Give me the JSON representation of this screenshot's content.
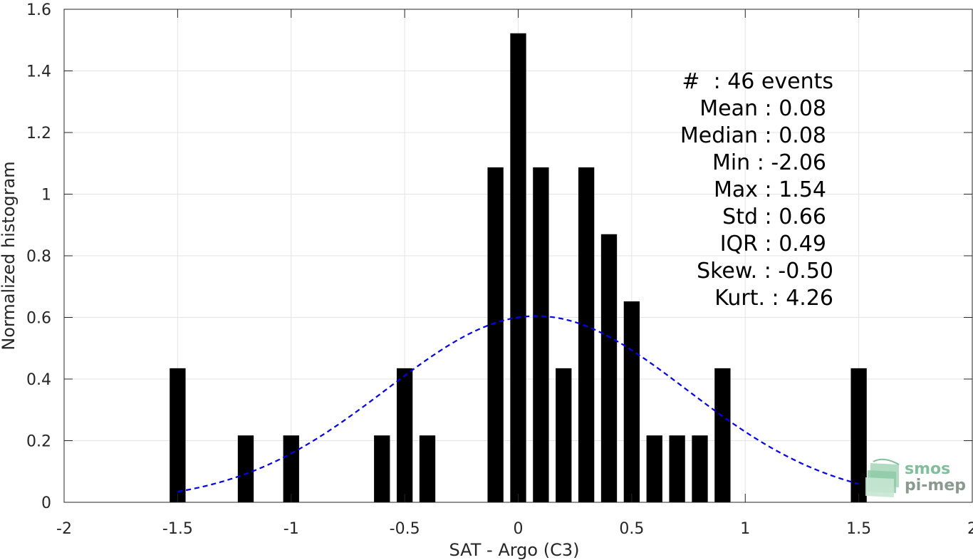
{
  "chart_data": {
    "type": "bar",
    "title": "",
    "xlabel": "SAT - Argo (C3)",
    "ylabel": "Normalized histogram",
    "xlim": [
      -2,
      2
    ],
    "ylim": [
      0,
      1.6
    ],
    "xticks": [
      -2,
      -1.5,
      -1,
      -0.5,
      0,
      0.5,
      1,
      1.5,
      2
    ],
    "xtick_labels": [
      "-2",
      "-1.5",
      "-1",
      "-0.5",
      "0",
      "0.5",
      "1",
      "1.5",
      "2"
    ],
    "yticks": [
      0,
      0.2,
      0.4,
      0.6,
      0.8,
      1,
      1.2,
      1.4,
      1.6
    ],
    "ytick_labels": [
      "0",
      "0.2",
      "0.4",
      "0.6",
      "0.8",
      "1",
      "1.2",
      "1.4",
      "1.6"
    ],
    "grid": true,
    "bar_color": "#000000",
    "bar_width": 0.07,
    "bars": [
      {
        "x": -1.5,
        "y": 0.435
      },
      {
        "x": -1.2,
        "y": 0.217
      },
      {
        "x": -1.0,
        "y": 0.217
      },
      {
        "x": -0.6,
        "y": 0.217
      },
      {
        "x": -0.5,
        "y": 0.435
      },
      {
        "x": -0.4,
        "y": 0.217
      },
      {
        "x": -0.1,
        "y": 1.087
      },
      {
        "x": 0.0,
        "y": 1.522
      },
      {
        "x": 0.1,
        "y": 1.087
      },
      {
        "x": 0.2,
        "y": 0.435
      },
      {
        "x": 0.3,
        "y": 1.087
      },
      {
        "x": 0.4,
        "y": 0.87
      },
      {
        "x": 0.5,
        "y": 0.652
      },
      {
        "x": 0.6,
        "y": 0.217
      },
      {
        "x": 0.7,
        "y": 0.217
      },
      {
        "x": 0.8,
        "y": 0.217
      },
      {
        "x": 0.9,
        "y": 0.435
      },
      {
        "x": 1.5,
        "y": 0.435
      }
    ],
    "fit_curve": {
      "type": "normal",
      "mean": 0.08,
      "std": 0.66,
      "x_range": [
        -1.5,
        1.5
      ],
      "color": "#0000ff",
      "style": "dashed"
    },
    "annotations": [
      "#  : 46 events",
      "Mean : 0.08",
      "Median : 0.08",
      "Min : -2.06",
      "Max : 1.54",
      "Std : 0.66",
      "IQR : 0.49",
      "Skew. : -0.50",
      "Kurt. : 4.26"
    ]
  },
  "logo": {
    "line1": "smos",
    "line2": "pi-mep",
    "color": "#7fbf9a"
  }
}
